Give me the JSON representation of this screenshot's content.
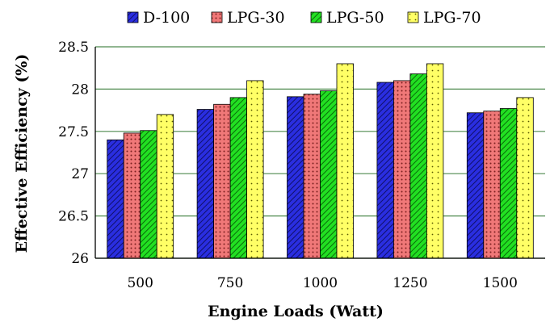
{
  "chart_data": {
    "type": "bar",
    "title": "",
    "xlabel": "Engine Loads (Watt)",
    "ylabel": "Effective Efficiency (%)",
    "categories": [
      "500",
      "750",
      "1000",
      "1250",
      "1500"
    ],
    "ylim": [
      26,
      28.5
    ],
    "yticks": [
      "26",
      "26.5",
      "27",
      "27.5",
      "28",
      "28.5"
    ],
    "grid": true,
    "legend_position": "top",
    "series": [
      {
        "name": "D-100",
        "values": [
          27.4,
          27.76,
          27.91,
          28.08,
          27.72
        ],
        "color": "#2a2ee0",
        "pattern": "diagonal-stripes"
      },
      {
        "name": "LPG-30",
        "values": [
          27.48,
          27.82,
          27.94,
          28.1,
          27.74
        ],
        "color": "#f07878",
        "pattern": "dots"
      },
      {
        "name": "LPG-50",
        "values": [
          27.51,
          27.9,
          27.98,
          28.18,
          27.77
        ],
        "color": "#22e022",
        "pattern": "diagonal-stripes"
      },
      {
        "name": "LPG-70",
        "values": [
          27.7,
          28.1,
          28.3,
          28.3,
          27.9
        ],
        "color": "#ffff66",
        "pattern": "dots"
      }
    ]
  }
}
